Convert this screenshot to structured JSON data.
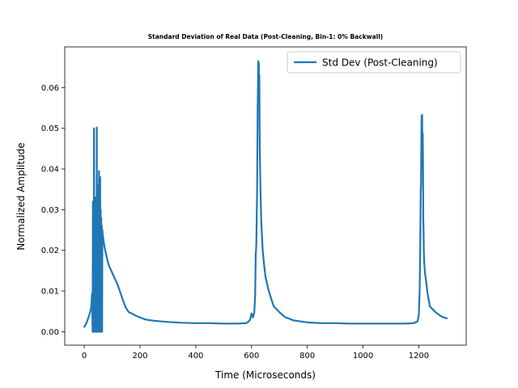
{
  "chart_data": {
    "type": "line",
    "title": "Standard Deviation of Real Data (Post-Cleaning, Bin-1: 0% Backwall)",
    "xlabel": "Time (Microseconds)",
    "ylabel": "Normalized Amplitude",
    "xlim": [
      -70,
      1370
    ],
    "ylim": [
      -0.0033,
      0.07
    ],
    "xticks": [
      0,
      200,
      400,
      600,
      800,
      1000,
      1200
    ],
    "xtick_labels": [
      "0",
      "200",
      "400",
      "600",
      "800",
      "1000",
      "1200"
    ],
    "yticks": [
      0.0,
      0.01,
      0.02,
      0.03,
      0.04,
      0.05,
      0.06
    ],
    "ytick_labels": [
      "0.00",
      "0.01",
      "0.02",
      "0.03",
      "0.04",
      "0.05",
      "0.06"
    ],
    "grid": false,
    "legend_position": "top-right",
    "series": [
      {
        "name": "Std Dev (Post-Cleaning)",
        "color": "#1f77b4",
        "x": [
          0,
          5,
          10,
          15,
          20,
          25,
          28,
          30,
          31,
          32,
          33,
          34,
          35,
          36,
          37,
          38,
          39,
          40,
          41,
          42,
          43,
          44,
          45,
          46,
          47,
          48,
          49,
          50,
          51,
          52,
          53,
          54,
          55,
          56,
          57,
          58,
          59,
          60,
          61,
          62,
          63,
          64,
          65,
          66,
          70,
          75,
          80,
          85,
          90,
          100,
          110,
          120,
          130,
          140,
          150,
          160,
          170,
          180,
          200,
          220,
          250,
          300,
          350,
          400,
          450,
          500,
          550,
          580,
          590,
          595,
          600,
          605,
          610,
          613,
          615,
          617,
          619,
          620,
          621,
          622,
          623,
          624,
          625,
          626,
          627,
          628,
          629,
          630,
          632,
          635,
          640,
          645,
          650,
          660,
          670,
          680,
          700,
          720,
          750,
          800,
          850,
          900,
          950,
          1000,
          1050,
          1100,
          1150,
          1180,
          1195,
          1200,
          1203,
          1205,
          1207,
          1208,
          1209,
          1210,
          1211,
          1212,
          1213,
          1214,
          1215,
          1216,
          1217,
          1218,
          1219,
          1220,
          1222,
          1224,
          1226,
          1228,
          1230,
          1235,
          1240,
          1250,
          1260,
          1270,
          1280,
          1290,
          1300
        ],
        "y": [
          0.0012,
          0.0018,
          0.0025,
          0.0035,
          0.0045,
          0.006,
          0.0095,
          0.0,
          0.032,
          0.0,
          0.03,
          0.0,
          0.05,
          0.0,
          0.028,
          0.0,
          0.033,
          0.0,
          0.025,
          0.0,
          0.03,
          0.0,
          0.0502,
          0.0,
          0.025,
          0.0,
          0.036,
          0.0,
          0.032,
          0.0,
          0.0395,
          0.0,
          0.035,
          0.0,
          0.038,
          0.0,
          0.03,
          0.0,
          0.028,
          0.0,
          0.026,
          0.0,
          0.025,
          0.024,
          0.022,
          0.02,
          0.0185,
          0.017,
          0.016,
          0.0145,
          0.013,
          0.0115,
          0.0095,
          0.0075,
          0.0058,
          0.0048,
          0.0045,
          0.0041,
          0.0035,
          0.003,
          0.0027,
          0.0024,
          0.0022,
          0.0021,
          0.0021,
          0.002,
          0.002,
          0.0021,
          0.0025,
          0.003,
          0.0045,
          0.0035,
          0.0048,
          0.009,
          0.019,
          0.021,
          0.03,
          0.035,
          0.045,
          0.055,
          0.06,
          0.0665,
          0.063,
          0.066,
          0.058,
          0.063,
          0.05,
          0.043,
          0.035,
          0.027,
          0.02,
          0.0165,
          0.0135,
          0.0105,
          0.0082,
          0.0062,
          0.0048,
          0.0036,
          0.0028,
          0.0023,
          0.0021,
          0.0021,
          0.002,
          0.002,
          0.002,
          0.002,
          0.002,
          0.0021,
          0.0025,
          0.004,
          0.01,
          0.02,
          0.035,
          0.036,
          0.045,
          0.053,
          0.05,
          0.0533,
          0.04,
          0.0488,
          0.042,
          0.028,
          0.025,
          0.02,
          0.0175,
          0.0165,
          0.0145,
          0.0135,
          0.0125,
          0.0115,
          0.01,
          0.008,
          0.0062,
          0.0055,
          0.0048,
          0.0043,
          0.0038,
          0.0035,
          0.0033
        ]
      }
    ]
  }
}
